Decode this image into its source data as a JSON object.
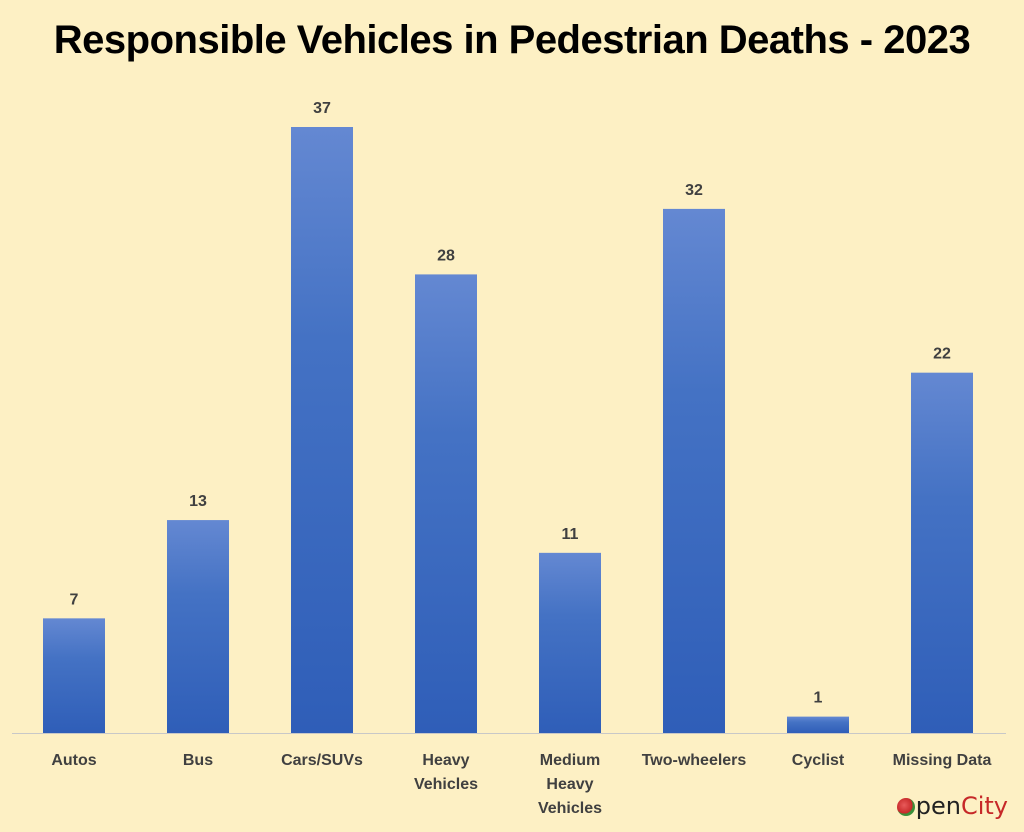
{
  "chart_data": {
    "type": "bar",
    "title": "Responsible Vehicles in Pedestrian Deaths - 2023",
    "categories": [
      [
        "Autos"
      ],
      [
        "Bus"
      ],
      [
        "Cars/SUVs"
      ],
      [
        "Heavy",
        "Vehicles"
      ],
      [
        "Medium",
        "Heavy",
        "Vehicles"
      ],
      [
        "Two-wheelers"
      ],
      [
        "Cyclist"
      ],
      [
        "Missing Data"
      ]
    ],
    "values": [
      7,
      13,
      37,
      28,
      11,
      32,
      1,
      22
    ],
    "data_labels": true,
    "xlabel": "",
    "ylabel": "",
    "ylim": [
      0,
      37
    ],
    "grid": false,
    "bar_color": "#4472c4"
  },
  "brand": {
    "logo_prefix": "pen",
    "logo_suffix": "City",
    "logo_text": "OpenCity"
  }
}
